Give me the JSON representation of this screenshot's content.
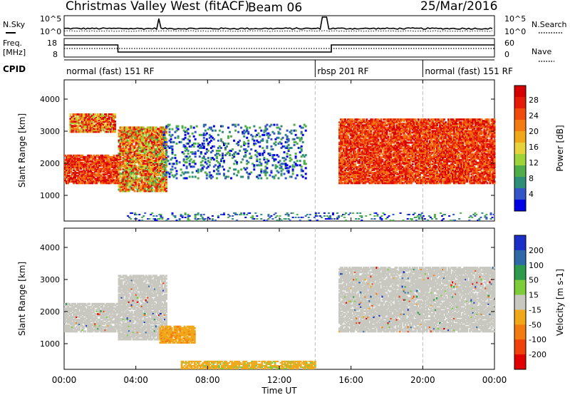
{
  "header": {
    "station": "Christmas Valley West (fitACF)",
    "beam": "Beam 06",
    "date": "25/Mar/2016"
  },
  "labels": {
    "nsky": "N.Sky",
    "nsearch": "N.Search",
    "freq_line1": "Freq.",
    "freq_line2": "[MHz]",
    "nave": "Nave",
    "cpid": "CPID"
  },
  "cpid_segments": [
    {
      "label": "normal (fast) 151 RF",
      "start_h": 0,
      "end_h": 14.0
    },
    {
      "label": "rbsp 201 RF",
      "start_h": 14.0,
      "end_h": 20.0
    },
    {
      "label": "normal (fast) 151 RF",
      "start_h": 20.0,
      "end_h": 24
    }
  ],
  "noise_axis": {
    "left_ticks": [
      "10^5",
      "10^0"
    ],
    "right_ticks": [
      "10^5",
      "10^0"
    ]
  },
  "freq_axis": {
    "left_ticks": [
      "18",
      "8"
    ],
    "right_ticks": [
      "60",
      "0"
    ]
  },
  "chart_data": [
    {
      "type": "heatmap",
      "title": "",
      "xlabel": "Time UT",
      "ylabel": "Slant Range [km]",
      "x_ticks": [
        "00:00",
        "04:00",
        "08:00",
        "12:00",
        "16:00",
        "20:00",
        "00:00"
      ],
      "xlim_h": [
        0,
        24
      ],
      "ylim": [
        200,
        4600
      ],
      "y_ticks": [
        1000,
        2000,
        3000,
        4000
      ],
      "colorbar": {
        "label": "Power [dB]",
        "ticks": [
          "4",
          "8",
          "12",
          "16",
          "20",
          "24",
          "28"
        ],
        "range": [
          0,
          30
        ],
        "colors": [
          "#0000e6",
          "#3355c8",
          "#2e8f78",
          "#4fae49",
          "#9fd33a",
          "#e6d23a",
          "#f0a81a",
          "#f47a12",
          "#f04a0c",
          "#e61a08",
          "#d60000"
        ]
      },
      "echo_regions": [
        {
          "h0": 0.0,
          "h1": 3.0,
          "r_lo": 1350,
          "r_hi": 2250,
          "power": "high"
        },
        {
          "h0": 0.3,
          "h1": 2.8,
          "r_lo": 2950,
          "r_hi": 3500,
          "power": "mixed"
        },
        {
          "h0": 3.0,
          "h1": 5.7,
          "r_lo": 1100,
          "r_hi": 3100,
          "power": "mixed-high"
        },
        {
          "h0": 5.5,
          "h1": 13.5,
          "r_lo": 1500,
          "r_hi": 3200,
          "power": "low-sparse"
        },
        {
          "h0": 15.3,
          "h1": 24.0,
          "r_lo": 1350,
          "r_hi": 3350,
          "power": "high"
        },
        {
          "h0": 3.5,
          "h1": 24.0,
          "r_lo": 200,
          "r_hi": 450,
          "power": "low-sparse"
        }
      ]
    },
    {
      "type": "heatmap",
      "title": "",
      "xlabel": "Time UT",
      "ylabel": "Slant Range [km]",
      "x_ticks": [
        "00:00",
        "04:00",
        "08:00",
        "12:00",
        "16:00",
        "20:00",
        "00:00"
      ],
      "xlim_h": [
        0,
        24
      ],
      "ylim": [
        200,
        4600
      ],
      "y_ticks": [
        1000,
        2000,
        3000,
        4000
      ],
      "colorbar": {
        "label": "Velocity [m s-1]",
        "ticks": [
          "200",
          "100",
          "50",
          "15",
          "-15",
          "-50",
          "-100",
          "-200"
        ],
        "range": [
          -250,
          250
        ],
        "colors": [
          "#1a2ec8",
          "#2e6aa8",
          "#2e9a4e",
          "#7fcc3a",
          "#c8c8c0",
          "#f0a81a",
          "#f47a12",
          "#f0400c",
          "#e00000"
        ]
      },
      "echo_regions": [
        {
          "h0": 0.0,
          "h1": 3.0,
          "r_lo": 1350,
          "r_hi": 2250,
          "velocity": "near-zero"
        },
        {
          "h0": 3.0,
          "h1": 5.7,
          "r_lo": 1100,
          "r_hi": 3100,
          "velocity": "near-zero"
        },
        {
          "h0": 5.3,
          "h1": 7.3,
          "r_lo": 1000,
          "r_hi": 1500,
          "velocity": "negative-50"
        },
        {
          "h0": 15.3,
          "h1": 24.0,
          "r_lo": 1350,
          "r_hi": 3350,
          "velocity": "near-zero"
        },
        {
          "h0": 6.5,
          "h1": 14.0,
          "r_lo": 200,
          "r_hi": 450,
          "velocity": "negative-15"
        }
      ]
    }
  ]
}
